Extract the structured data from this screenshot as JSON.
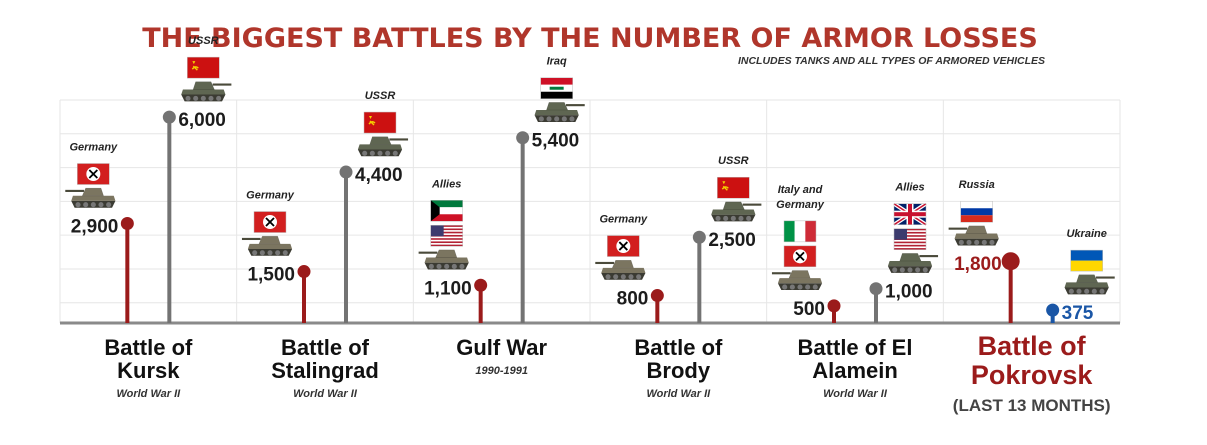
{
  "chart_data": {
    "type": "lollipop",
    "title": "THE BIGGEST BATTLES BY THE NUMBER OF ARMOR LOSSES",
    "subtitle": "INCLUDES TANKS AND ALL TYPES OF ARMORED VEHICLES",
    "grid": true,
    "ylim": [
      0,
      6500
    ],
    "colors": {
      "title": "#b0362b",
      "axis_side": "#9b1b1b",
      "gray_side": "#737373",
      "ukraine": "#1a56a6",
      "text": "#1c1c1c",
      "grid": "#e6e6e6"
    },
    "categories": [
      {
        "name_lines": [
          "Battle of",
          "Kursk"
        ],
        "era": "World War II",
        "note": "",
        "highlight": false
      },
      {
        "name_lines": [
          "Battle of",
          "Stalingrad"
        ],
        "era": "World War II",
        "note": "",
        "highlight": false
      },
      {
        "name_lines": [
          "Gulf War"
        ],
        "era": "1990-1991",
        "note": "",
        "highlight": false
      },
      {
        "name_lines": [
          "Battle of",
          "Brody"
        ],
        "era": "World War II",
        "note": "",
        "highlight": false
      },
      {
        "name_lines": [
          "Battle of El",
          "Alamein"
        ],
        "era": "World War II",
        "note": "",
        "highlight": false
      },
      {
        "name_lines": [
          "Battle of",
          "Pokrovsk"
        ],
        "era": "",
        "note": "(LAST 13 MONTHS)",
        "highlight": true
      }
    ],
    "points": [
      {
        "category": 0,
        "side": "left",
        "value": 2900,
        "label": "2,900",
        "party_lines": [
          "Germany"
        ],
        "flags": [
          "germany"
        ],
        "color": "axis_side"
      },
      {
        "category": 0,
        "side": "right",
        "value": 6000,
        "label": "6,000",
        "party_lines": [
          "USSR"
        ],
        "flags": [
          "ussr"
        ],
        "color": "gray_side"
      },
      {
        "category": 1,
        "side": "left",
        "value": 1500,
        "label": "1,500",
        "party_lines": [
          "Germany"
        ],
        "flags": [
          "germany"
        ],
        "color": "axis_side"
      },
      {
        "category": 1,
        "side": "right",
        "value": 4400,
        "label": "4,400",
        "party_lines": [
          "USSR"
        ],
        "flags": [
          "ussr"
        ],
        "color": "gray_side"
      },
      {
        "category": 2,
        "side": "left",
        "value": 1100,
        "label": "1,100",
        "party_lines": [
          "Allies"
        ],
        "flags": [
          "kuwait",
          "usa"
        ],
        "color": "axis_side"
      },
      {
        "category": 2,
        "side": "right",
        "value": 5400,
        "label": "5,400",
        "party_lines": [
          "Iraq"
        ],
        "flags": [
          "iraq"
        ],
        "color": "gray_side"
      },
      {
        "category": 3,
        "side": "left",
        "value": 800,
        "label": "800",
        "party_lines": [
          "Germany"
        ],
        "flags": [
          "germany"
        ],
        "color": "axis_side"
      },
      {
        "category": 3,
        "side": "right",
        "value": 2500,
        "label": "2,500",
        "party_lines": [
          "USSR"
        ],
        "flags": [
          "ussr"
        ],
        "color": "gray_side"
      },
      {
        "category": 4,
        "side": "left",
        "value": 500,
        "label": "500",
        "party_lines": [
          "Italy and",
          "Germany"
        ],
        "flags": [
          "italy",
          "germany"
        ],
        "color": "axis_side"
      },
      {
        "category": 4,
        "side": "right",
        "value": 1000,
        "label": "1,000",
        "party_lines": [
          "Allies"
        ],
        "flags": [
          "uk",
          "usa"
        ],
        "color": "gray_side"
      },
      {
        "category": 5,
        "side": "left",
        "value": 1800,
        "label": "1,800",
        "party_lines": [
          "Russia"
        ],
        "flags": [
          "russia"
        ],
        "color": "axis_side"
      },
      {
        "category": 5,
        "side": "right",
        "value": 375,
        "label": "375",
        "party_lines": [
          "Ukraine"
        ],
        "flags": [
          "ukraine"
        ],
        "color": "ukraine"
      }
    ]
  }
}
